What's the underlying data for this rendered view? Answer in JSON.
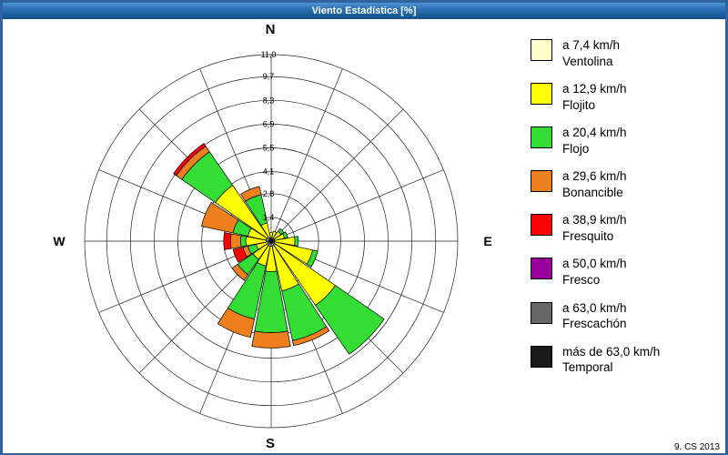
{
  "window": {
    "title": "Viento Estadística [%]",
    "footer": "9. CS 2013"
  },
  "chart_data": {
    "type": "bar",
    "coordinate_system": "polar",
    "stacked": true,
    "description": "Wind rose: frequency [%] of wind by direction and speed class",
    "units": "%",
    "rmax": 11.0,
    "ring_values": [
      1.4,
      2.8,
      4.1,
      5.5,
      6.9,
      8.3,
      9.7,
      11.0
    ],
    "ring_labels": [
      "1,4",
      "2,8",
      "4,1",
      "5,5",
      "6,9",
      "8,3",
      "9,7",
      "11,0"
    ],
    "compass": {
      "north": "N",
      "east": "E",
      "south": "S",
      "west": "W"
    },
    "directions": [
      "N",
      "NNE",
      "NE",
      "ENE",
      "E",
      "ESE",
      "SE",
      "SSE",
      "S",
      "SSW",
      "SW",
      "WSW",
      "W",
      "WNW",
      "NW",
      "NNW"
    ],
    "legend_position": "right",
    "grid": true,
    "series": [
      {
        "name": "Ventolina",
        "speed_label": "a 7,4 km/h",
        "color": "#FFFFCC",
        "values": [
          0.2,
          0.2,
          0.2,
          0.2,
          0.2,
          0.2,
          0.3,
          0.3,
          0.3,
          0.3,
          0.3,
          0.2,
          0.3,
          0.3,
          0.3,
          0.2
        ]
      },
      {
        "name": "Flojito",
        "speed_label": "a 12,9 km/h",
        "color": "#FFFF00",
        "values": [
          0.3,
          0.4,
          0.5,
          0.6,
          1.2,
          2.3,
          4.3,
          2.7,
          1.5,
          1.2,
          1.0,
          0.7,
          1.2,
          1.1,
          3.7,
          0.9
        ]
      },
      {
        "name": "Flojo",
        "speed_label": "a 20,4 km/h",
        "color": "#33DD33",
        "values": [
          0,
          0,
          0.2,
          0.2,
          0.2,
          0.3,
          3.5,
          3.0,
          3.6,
          3.2,
          1.1,
          0.5,
          0.3,
          0.9,
          2.4,
          1.7
        ]
      },
      {
        "name": "Bonancible",
        "speed_label": "a 29,6 km/h",
        "color": "#EE7F1D",
        "values": [
          0,
          0,
          0,
          0,
          0,
          0,
          0,
          0.3,
          0.9,
          1.1,
          0.4,
          0.3,
          0.6,
          1.9,
          0.4,
          0.5
        ]
      },
      {
        "name": "Fresquito",
        "speed_label": "a 38,9 km/h",
        "color": "#FF0000",
        "values": [
          0,
          0,
          0,
          0,
          0,
          0,
          0,
          0,
          0,
          0,
          0,
          0.6,
          0.4,
          0,
          0.2,
          0
        ]
      },
      {
        "name": "Fresco",
        "speed_label": "a 50,0 km/h",
        "color": "#990099",
        "values": [
          0,
          0,
          0,
          0,
          0,
          0,
          0,
          0,
          0,
          0,
          0,
          0,
          0,
          0,
          0,
          0
        ]
      },
      {
        "name": "Frescachón",
        "speed_label": "a 63,0 km/h",
        "color": "#666666",
        "values": [
          0,
          0,
          0,
          0,
          0,
          0,
          0,
          0,
          0,
          0,
          0,
          0,
          0,
          0,
          0,
          0
        ]
      },
      {
        "name": "Temporal",
        "speed_label": "más de 63,0 km/h",
        "color": "#1A1A1A",
        "values": [
          0,
          0,
          0,
          0,
          0,
          0,
          0,
          0,
          0,
          0,
          0,
          0,
          0,
          0,
          0,
          0
        ]
      }
    ]
  }
}
